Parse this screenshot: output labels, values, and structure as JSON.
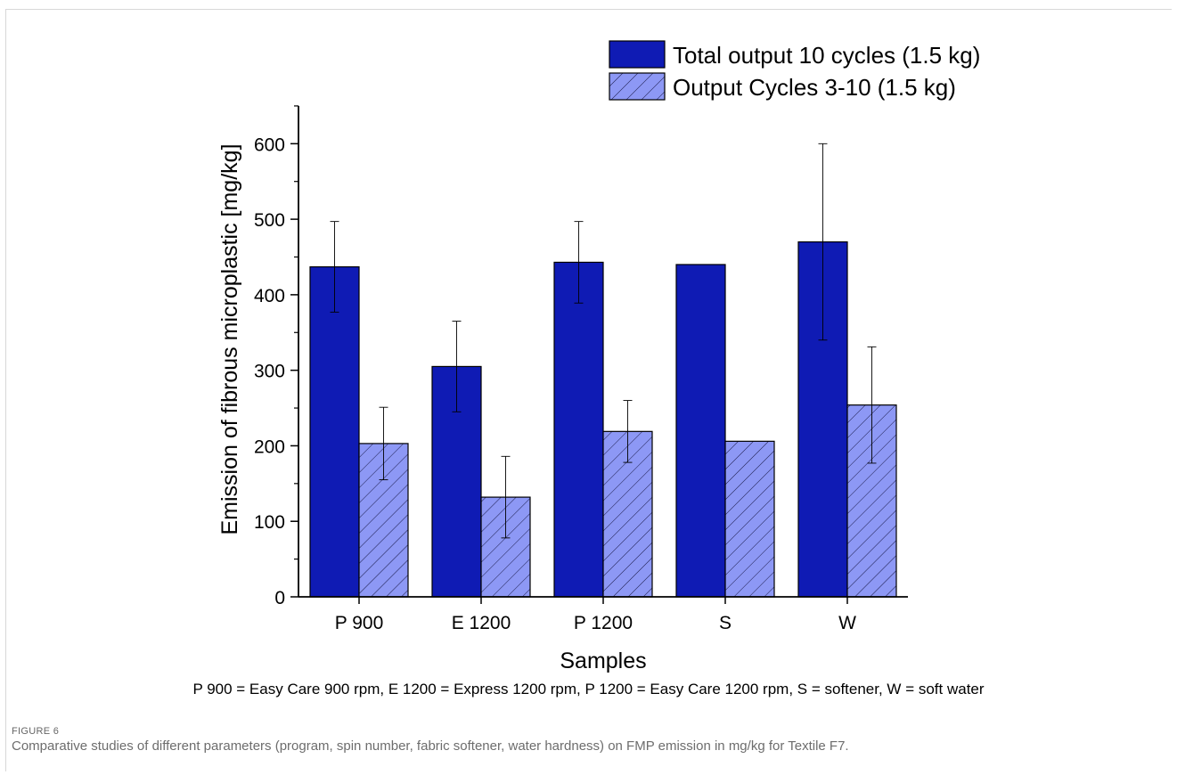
{
  "chart_data": {
    "type": "bar",
    "categories": [
      "P 900",
      "E 1200",
      "P 1200",
      "S",
      "W"
    ],
    "series": [
      {
        "name": "Total output 10 cycles (1.5 kg)",
        "values": [
          437,
          305,
          443,
          440,
          470
        ],
        "errors": [
          60,
          60,
          54,
          null,
          130
        ],
        "color": "#0f1bb4",
        "pattern": "solid"
      },
      {
        "name": "Output Cycles 3-10 (1.5 kg)",
        "values": [
          203,
          132,
          219,
          206,
          254
        ],
        "errors": [
          48,
          54,
          41,
          null,
          77
        ],
        "color": "#8d98f5",
        "pattern": "hatched"
      }
    ],
    "xlabel": "Samples",
    "ylabel": "Emission of fibrous microplastic [mg/kg]",
    "ylim": [
      0,
      650
    ],
    "yticks": [
      0,
      100,
      200,
      300,
      400,
      500,
      600
    ],
    "legend_position": "top-right",
    "grid": false
  },
  "footnote": "P 900 = Easy Care 900 rpm, E 1200 = Express 1200 rpm, P 1200 = Easy Care 1200 rpm, S = softener, W = soft water",
  "figure": {
    "label": "FIGURE 6",
    "caption": "Comparative studies of different parameters (program, spin number, fabric softener, water hardness) on FMP emission in mg/kg for Textile F7."
  }
}
